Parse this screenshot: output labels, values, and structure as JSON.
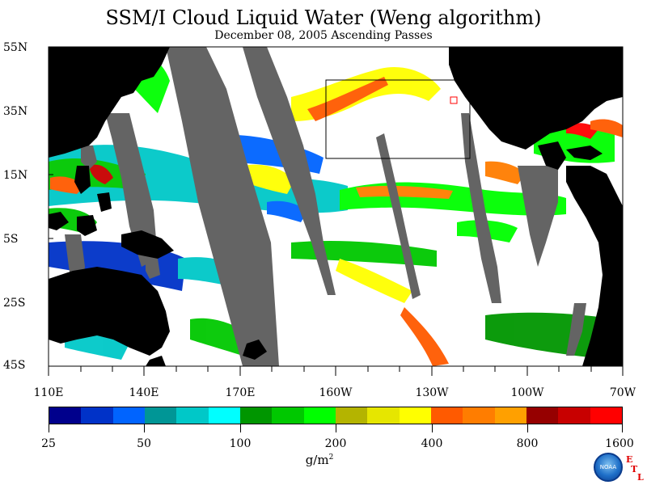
{
  "title": "SSM/I Cloud Liquid Water (Weng algorithm)",
  "subtitle": "December 08, 2005  Ascending Passes",
  "lat_labels": [
    "55N",
    "35N",
    "15N",
    "5S",
    "25S",
    "45S"
  ],
  "lon_labels": [
    "110E",
    "140E",
    "170E",
    "160W",
    "130W",
    "100W",
    "70W"
  ],
  "colorbar": {
    "colors": [
      "#00008c",
      "#0032c8",
      "#0064ff",
      "#009696",
      "#00c8c8",
      "#00ffff",
      "#009600",
      "#00c800",
      "#00ff00",
      "#b4b400",
      "#e6e600",
      "#ffff00",
      "#ff5a00",
      "#ff7d00",
      "#ffa000",
      "#960000",
      "#c80000",
      "#ff0000"
    ],
    "tick_labels": [
      "25",
      "50",
      "100",
      "200",
      "400",
      "800",
      "1600"
    ],
    "units_base": "g/m",
    "units_sup": "2"
  },
  "colors": {
    "land": "#000000",
    "gap": "#646464",
    "clear": "#ffffff"
  },
  "logo": {
    "text": "NOAA",
    "etl_e": "E",
    "etl_t": "T",
    "etl_l": "L"
  }
}
